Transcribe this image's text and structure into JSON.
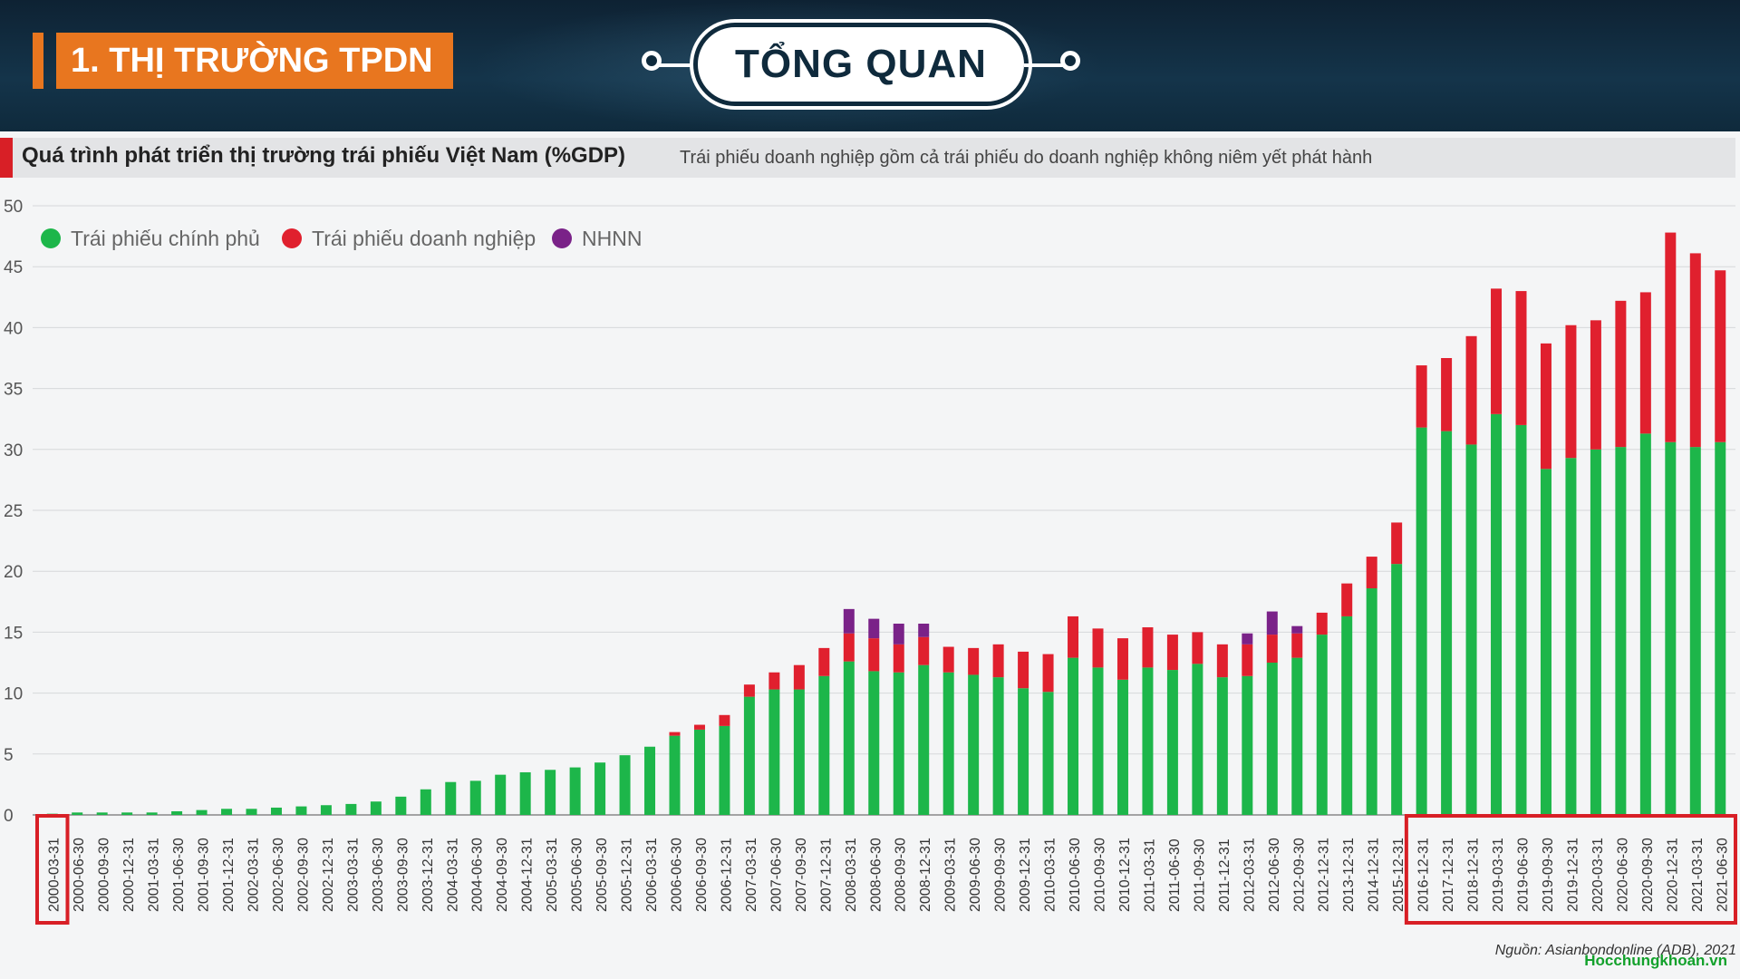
{
  "header": {
    "section_label": "1. THỊ TRƯỜNG TPDN",
    "center_title": "TỔNG QUAN"
  },
  "colors": {
    "orange": "#e8761f",
    "navy": "#0f2a3c",
    "gov": "#1db64a",
    "corp": "#e0202e",
    "sbv": "#7a2288",
    "highlight_box": "#d81f26"
  },
  "chart_data": {
    "type": "bar",
    "stacked": true,
    "title": "Quá trình phát triển thị trường trái phiếu Việt Nam (%GDP)",
    "subtitle": "Trái phiếu doanh nghiệp gồm cả trái phiếu do doanh nghiệp không niêm yết phát hành",
    "source": "Nguồn: Asianbondonline (ADB), 2021",
    "watermark": "Hocchungkhoan.vn",
    "ylim": [
      0,
      50
    ],
    "yticks": [
      0,
      5,
      10,
      15,
      20,
      25,
      30,
      35,
      40,
      45,
      50
    ],
    "legend_position": "top-left",
    "grid": true,
    "categories": [
      "2000-03-31",
      "2000-06-30",
      "2000-09-30",
      "2000-12-31",
      "2001-03-31",
      "2001-06-30",
      "2001-09-30",
      "2001-12-31",
      "2002-03-31",
      "2002-06-30",
      "2002-09-30",
      "2002-12-31",
      "2003-03-31",
      "2003-06-30",
      "2003-09-30",
      "2003-12-31",
      "2004-03-31",
      "2004-06-30",
      "2004-09-30",
      "2004-12-31",
      "2005-03-31",
      "2005-06-30",
      "2005-09-30",
      "2005-12-31",
      "2006-03-31",
      "2006-06-30",
      "2006-09-30",
      "2006-12-31",
      "2007-03-31",
      "2007-06-30",
      "2007-09-30",
      "2007-12-31",
      "2008-03-31",
      "2008-06-30",
      "2008-09-30",
      "2008-12-31",
      "2009-03-31",
      "2009-06-30",
      "2009-09-30",
      "2009-12-31",
      "2010-03-31",
      "2010-06-30",
      "2010-09-30",
      "2010-12-31",
      "2011-03-31",
      "2011-06-30",
      "2011-09-30",
      "2011-12-31",
      "2012-03-31",
      "2012-06-30",
      "2012-09-30",
      "2012-12-31",
      "2013-12-31",
      "2014-12-31",
      "2015-12-31",
      "2016-12-31",
      "2017-12-31",
      "2018-12-31",
      "2019-03-31",
      "2019-06-30",
      "2019-09-30",
      "2019-12-31",
      "2020-03-31",
      "2020-06-30",
      "2020-09-30",
      "2020-12-31",
      "2021-03-31",
      "2021-06-30"
    ],
    "series": [
      {
        "name": "Trái phiếu chính phủ",
        "color": "#1db64a",
        "values": [
          0.1,
          0.2,
          0.2,
          0.2,
          0.2,
          0.3,
          0.4,
          0.5,
          0.5,
          0.6,
          0.7,
          0.8,
          0.9,
          1.1,
          1.5,
          2.1,
          2.7,
          2.8,
          3.3,
          3.5,
          3.7,
          3.9,
          4.3,
          4.9,
          5.6,
          6.5,
          7.0,
          7.3,
          9.7,
          10.3,
          10.3,
          11.4,
          12.6,
          11.8,
          11.7,
          12.3,
          11.7,
          11.5,
          11.3,
          10.4,
          10.1,
          12.9,
          12.1,
          11.1,
          12.1,
          11.9,
          12.4,
          11.3,
          11.4,
          12.5,
          12.9,
          14.8,
          16.3,
          18.6,
          20.6,
          31.8,
          31.5,
          30.4,
          32.9,
          32.0,
          28.4,
          29.3,
          30.0,
          30.2,
          31.3,
          30.6,
          30.2,
          30.6
        ]
      },
      {
        "name": "Trái phiếu doanh nghiệp",
        "color": "#e0202e",
        "values": [
          0,
          0,
          0,
          0,
          0,
          0,
          0,
          0,
          0,
          0,
          0,
          0,
          0,
          0,
          0,
          0,
          0,
          0,
          0,
          0,
          0,
          0,
          0,
          0,
          0,
          0.3,
          0.4,
          0.9,
          1.0,
          1.4,
          2.0,
          2.3,
          2.3,
          2.7,
          2.3,
          2.3,
          2.1,
          2.2,
          2.7,
          3.0,
          3.1,
          3.4,
          3.2,
          3.4,
          3.3,
          2.9,
          2.6,
          2.7,
          2.6,
          2.3,
          2.0,
          1.8,
          2.7,
          2.6,
          3.4,
          5.1,
          6.0,
          8.9,
          10.3,
          11.0,
          10.3,
          10.9,
          10.6,
          12.0,
          11.6,
          17.2,
          15.9,
          14.1
        ]
      },
      {
        "name": "NHNN",
        "color": "#7a2288",
        "values": [
          0,
          0,
          0,
          0,
          0,
          0,
          0,
          0,
          0,
          0,
          0,
          0,
          0,
          0,
          0,
          0,
          0,
          0,
          0,
          0,
          0,
          0,
          0,
          0,
          0,
          0,
          0,
          0,
          0,
          0,
          0,
          0,
          2.0,
          1.6,
          1.7,
          1.1,
          0,
          0,
          0,
          0,
          0,
          0,
          0,
          0,
          0,
          0,
          0,
          0,
          0.9,
          1.9,
          0.6,
          0,
          0,
          0,
          0,
          0,
          0,
          0,
          0,
          0,
          0,
          0,
          0,
          0,
          0,
          0,
          0,
          0
        ]
      }
    ],
    "highlight_groups": [
      {
        "from": "2000-03-31",
        "to": "2000-03-31"
      },
      {
        "from": "2016-12-31",
        "to": "2021-06-30"
      }
    ]
  }
}
